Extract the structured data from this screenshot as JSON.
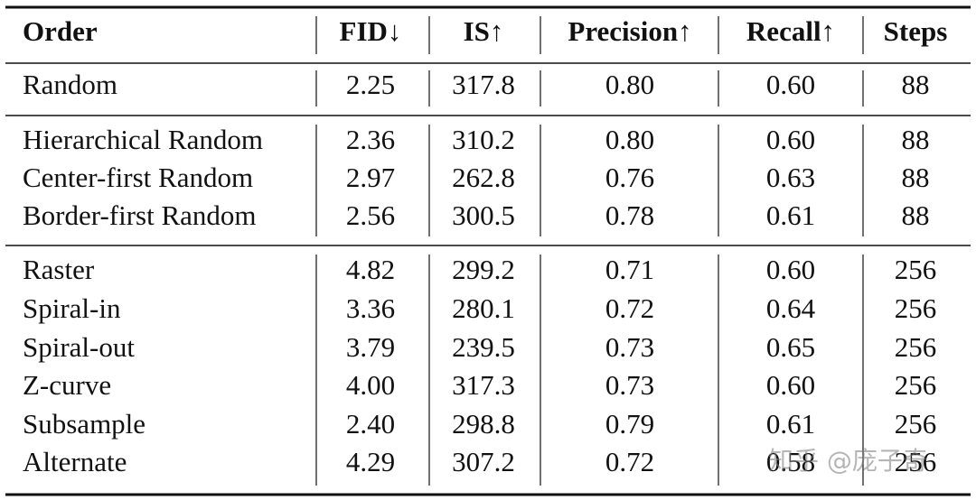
{
  "table": {
    "header": [
      "Order",
      "FID↓",
      "IS↑",
      "Precision↑",
      "Recall↑",
      "Steps"
    ],
    "groups": [
      [
        [
          "Random",
          "2.25",
          "317.8",
          "0.80",
          "0.60",
          "88"
        ]
      ],
      [
        [
          "Hierarchical Random",
          "2.36",
          "310.2",
          "0.80",
          "0.60",
          "88"
        ],
        [
          "Center-first Random",
          "2.97",
          "262.8",
          "0.76",
          "0.63",
          "88"
        ],
        [
          "Border-first Random",
          "2.56",
          "300.5",
          "0.78",
          "0.61",
          "88"
        ]
      ],
      [
        [
          "Raster",
          "4.82",
          "299.2",
          "0.71",
          "0.60",
          "256"
        ],
        [
          "Spiral-in",
          "3.36",
          "280.1",
          "0.72",
          "0.64",
          "256"
        ],
        [
          "Spiral-out",
          "3.79",
          "239.5",
          "0.73",
          "0.65",
          "256"
        ],
        [
          "Z-curve",
          "4.00",
          "317.3",
          "0.73",
          "0.60",
          "256"
        ],
        [
          "Subsample",
          "2.40",
          "298.8",
          "0.79",
          "0.61",
          "256"
        ],
        [
          "Alternate",
          "4.29",
          "307.2",
          "0.72",
          "0.58",
          "256"
        ]
      ]
    ]
  },
  "watermark": "知乎 @庞子奇"
}
